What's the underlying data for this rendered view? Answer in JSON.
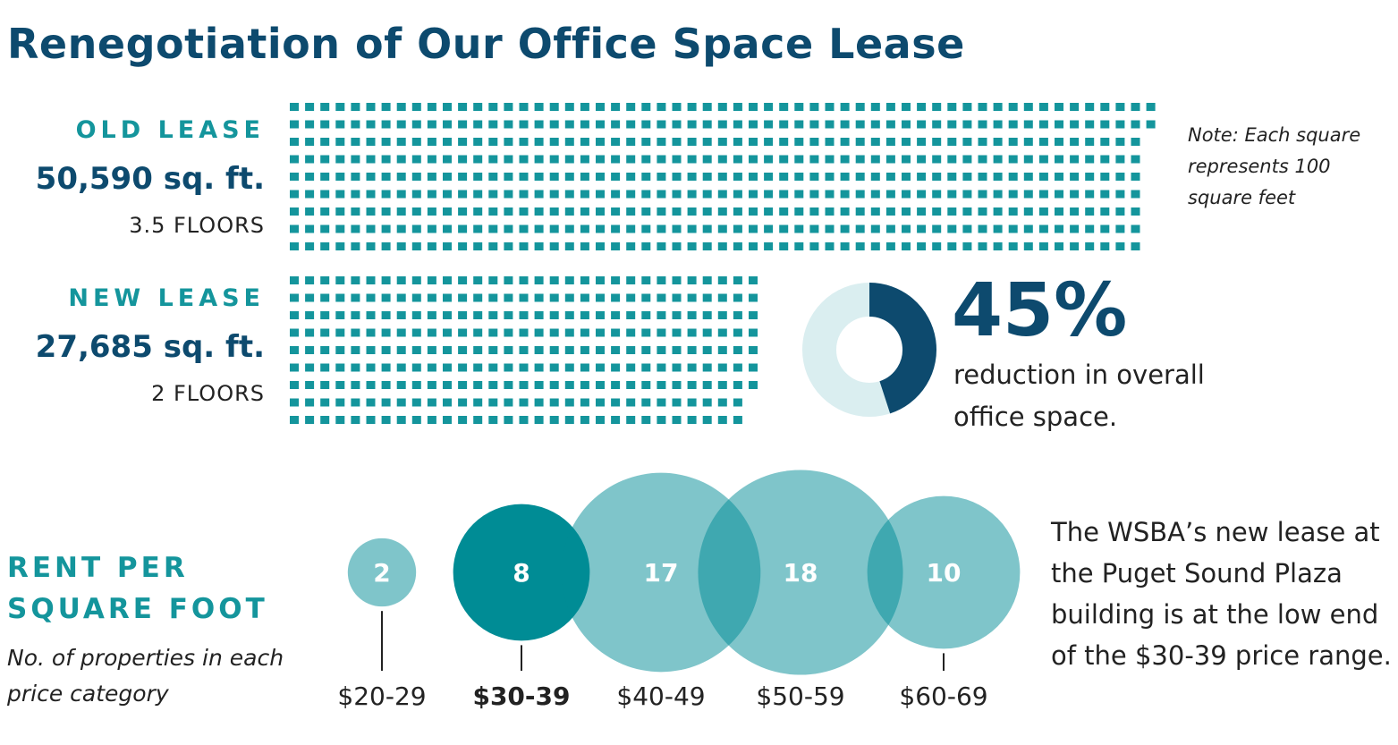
{
  "title": "Renegotiation of Our Office Space Lease",
  "note": "Note: Each square represents 100 square feet",
  "chart_data": [
    {
      "type": "waffle",
      "title": "OLD LEASE",
      "value": 50590,
      "value_label": "50,590 sq. ft.",
      "subtitle": "3.5 FLOORS",
      "unit": 100,
      "color": "#14959c"
    },
    {
      "type": "waffle",
      "title": "NEW LEASE",
      "value": 27685,
      "value_label": "27,685 sq. ft.",
      "subtitle": "2 FLOORS",
      "unit": 100,
      "color": "#14959c"
    },
    {
      "type": "donut",
      "value": 45,
      "value_label": "45%",
      "text": "reduction in overall office space.",
      "color": "#0d4a6e",
      "rest_color": "#daeef0"
    },
    {
      "type": "bubble",
      "title": "RENT PER SQUARE FOOT",
      "subtitle": "No. of properties in each price category",
      "categories": [
        "$20-29",
        "$30-39",
        "$40-49",
        "$50-59",
        "$60-69"
      ],
      "values": [
        2,
        8,
        17,
        18,
        10
      ],
      "color": "#008c95",
      "highlight": "$30-39",
      "annotation": "The WSBA’s new lease at the Puget Sound Plaza building is at the low end of the $30-39 price range."
    }
  ]
}
